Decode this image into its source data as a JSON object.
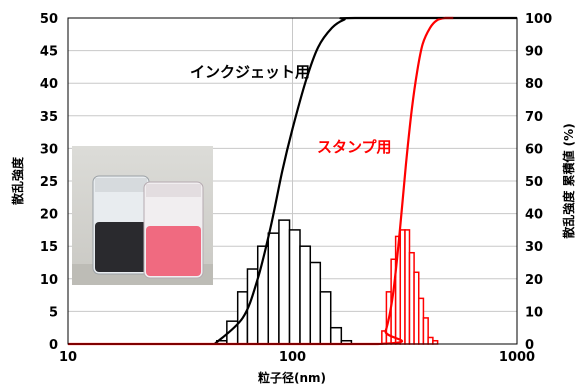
{
  "chart_data": {
    "type": "bar",
    "xscale": "log",
    "xlim": [
      10,
      1000
    ],
    "ylim": [
      0,
      50
    ],
    "y2lim": [
      0,
      100
    ],
    "xlabel": "粒子径(nm)",
    "ylabel": "散乱強度",
    "y2label": "散乱強度  累積値 (%)",
    "xticks": [
      "10",
      "100",
      "1000"
    ],
    "yticks": [
      "0",
      "5",
      "10",
      "15",
      "20",
      "25",
      "30",
      "35",
      "40",
      "45",
      "50"
    ],
    "y2ticks": [
      "0",
      "10",
      "20",
      "30",
      "40",
      "50",
      "60",
      "70",
      "80",
      "90",
      "100"
    ],
    "grid": true,
    "series": [
      {
        "name": "インクジェット用",
        "kind": "histogram",
        "color": "#000000",
        "bins": [
          {
            "x0": 46,
            "x1": 51,
            "y": 0.5
          },
          {
            "x0": 51,
            "x1": 57,
            "y": 3.5
          },
          {
            "x0": 57,
            "x1": 63,
            "y": 8
          },
          {
            "x0": 63,
            "x1": 70,
            "y": 11.5
          },
          {
            "x0": 70,
            "x1": 78,
            "y": 15
          },
          {
            "x0": 78,
            "x1": 87,
            "y": 17
          },
          {
            "x0": 87,
            "x1": 97,
            "y": 19
          },
          {
            "x0": 97,
            "x1": 108,
            "y": 17.5
          },
          {
            "x0": 108,
            "x1": 120,
            "y": 15
          },
          {
            "x0": 120,
            "x1": 133,
            "y": 12.5
          },
          {
            "x0": 133,
            "x1": 148,
            "y": 8
          },
          {
            "x0": 148,
            "x1": 165,
            "y": 2.5
          },
          {
            "x0": 165,
            "x1": 183,
            "y": 0.5
          }
        ],
        "cumulative": {
          "x": [
            45,
            60,
            70,
            80,
            90,
            100,
            115,
            130,
            150,
            170,
            190,
            1000
          ],
          "y": [
            0,
            8,
            20,
            36,
            53,
            66,
            81,
            91,
            97,
            99.5,
            100,
            100
          ]
        }
      },
      {
        "name": "スタンプ用",
        "kind": "histogram",
        "color": "#ff0000",
        "bins": [
          {
            "x0": 250,
            "x1": 262,
            "y": 2
          },
          {
            "x0": 262,
            "x1": 275,
            "y": 8
          },
          {
            "x0": 275,
            "x1": 288,
            "y": 13
          },
          {
            "x0": 288,
            "x1": 302,
            "y": 16.5
          },
          {
            "x0": 302,
            "x1": 317,
            "y": 17.5
          },
          {
            "x0": 317,
            "x1": 332,
            "y": 17.5
          },
          {
            "x0": 332,
            "x1": 348,
            "y": 14
          },
          {
            "x0": 348,
            "x1": 365,
            "y": 11
          },
          {
            "x0": 365,
            "x1": 383,
            "y": 7
          },
          {
            "x0": 383,
            "x1": 402,
            "y": 4
          },
          {
            "x0": 402,
            "x1": 422,
            "y": 1
          },
          {
            "x0": 422,
            "x1": 443,
            "y": 0.5
          }
        ],
        "cumulative": {
          "x": [
            10,
            240,
            260,
            280,
            300,
            320,
            340,
            360,
            380,
            410,
            440,
            480,
            520
          ],
          "y": [
            0,
            0,
            4,
            15,
            34,
            55,
            72,
            84,
            92,
            97,
            99.3,
            100,
            100
          ]
        }
      }
    ]
  },
  "inset_photo": {
    "description_colors": [
      "#2a2a2e",
      "#f06a80"
    ]
  }
}
